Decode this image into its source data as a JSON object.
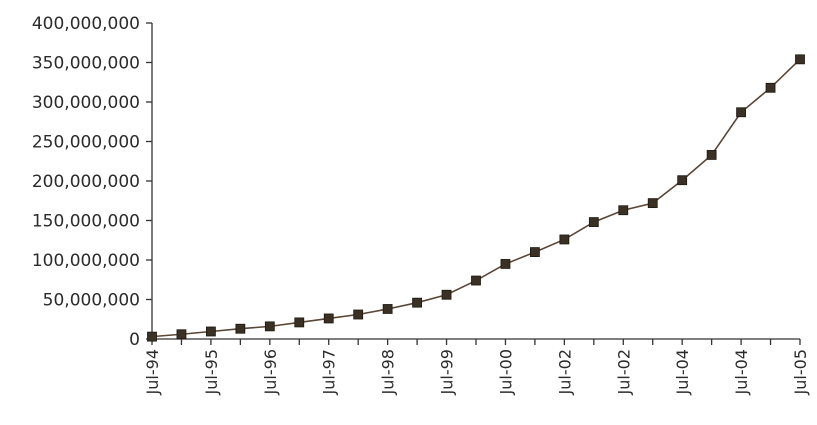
{
  "chart_data": {
    "type": "line",
    "title": "",
    "xlabel": "",
    "ylabel": "",
    "x": [
      "Jul-94",
      "",
      "Jul-95",
      "",
      "Jul-96",
      "",
      "Jul-97",
      "",
      "Jul-98",
      "",
      "Jul-99",
      "",
      "Jul-00",
      "",
      "Jul-02",
      "",
      "Jul-02",
      "",
      "Jul-04",
      "",
      "Jul-04",
      "",
      "Jul-05"
    ],
    "series": [
      {
        "values": [
          3000000,
          6000000,
          9500000,
          13000000,
          16000000,
          21000000,
          26000000,
          31000000,
          38000000,
          46000000,
          56000000,
          74000000,
          95000000,
          110000000,
          126000000,
          148000000,
          163000000,
          172000000,
          201000000,
          233000000,
          287000000,
          318000000,
          354000000
        ]
      }
    ],
    "ylim": [
      0,
      400000000
    ],
    "yticks": [
      0,
      50000000,
      100000000,
      150000000,
      200000000,
      250000000,
      300000000,
      350000000,
      400000000
    ],
    "ytick_labels": [
      "0",
      "50,000,000",
      "100,000,000",
      "150,000,000",
      "200,000,000",
      "250,000,000",
      "300,000,000",
      "350,000,000",
      "400,000,000"
    ],
    "grid": false,
    "legend": "none",
    "colors": {
      "line": "#5a4636",
      "marker": "#3a3024",
      "axis": "#333333"
    }
  }
}
